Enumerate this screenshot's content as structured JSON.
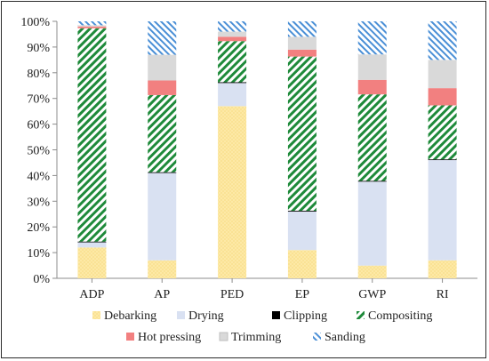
{
  "chart_data": {
    "type": "bar",
    "stacked": true,
    "percent_stacked": true,
    "categories": [
      "ADP",
      "AP",
      "PED",
      "EP",
      "GWP",
      "RI"
    ],
    "ylim": [
      0,
      100
    ],
    "yticks": [
      "0%",
      "10%",
      "20%",
      "30%",
      "40%",
      "50%",
      "60%",
      "70%",
      "80%",
      "90%",
      "100%"
    ],
    "grid": false,
    "legend_position": "bottom",
    "title": "",
    "xlabel": "",
    "ylabel": "",
    "series": [
      {
        "name": "Debarking",
        "values": [
          12,
          7,
          67,
          11,
          5,
          7
        ],
        "color": "#fde9a6",
        "pattern": "dots"
      },
      {
        "name": "Drying",
        "values": [
          2,
          34,
          9,
          15,
          33,
          39
        ],
        "color": "#d9e1f2",
        "pattern": "solid"
      },
      {
        "name": "Clipping",
        "values": [
          0.3,
          0.3,
          0.3,
          0.3,
          0.3,
          0.3
        ],
        "color": "#000000",
        "pattern": "solid"
      },
      {
        "name": "Compositing",
        "values": [
          83,
          30,
          16,
          60,
          34,
          21
        ],
        "color": "#1e8a3a",
        "pattern": "diagonal"
      },
      {
        "name": "Hot pressing",
        "values": [
          0.7,
          5.7,
          1.7,
          2.7,
          5.7,
          6.7
        ],
        "color": "#f28080",
        "pattern": "solid"
      },
      {
        "name": "Trimming",
        "values": [
          0.5,
          10,
          2,
          5,
          10,
          11
        ],
        "color": "#d9d9d9",
        "pattern": "solid"
      },
      {
        "name": "Sanding",
        "values": [
          1.5,
          13,
          4,
          6,
          13,
          15
        ],
        "color": "#4a8fd6",
        "pattern": "diagonal-blue"
      }
    ]
  },
  "legend": {
    "row1": [
      "Debarking",
      "Drying",
      "Clipping",
      "Compositing"
    ],
    "row2": [
      "Hot pressing",
      "Trimming",
      "Sanding"
    ]
  }
}
